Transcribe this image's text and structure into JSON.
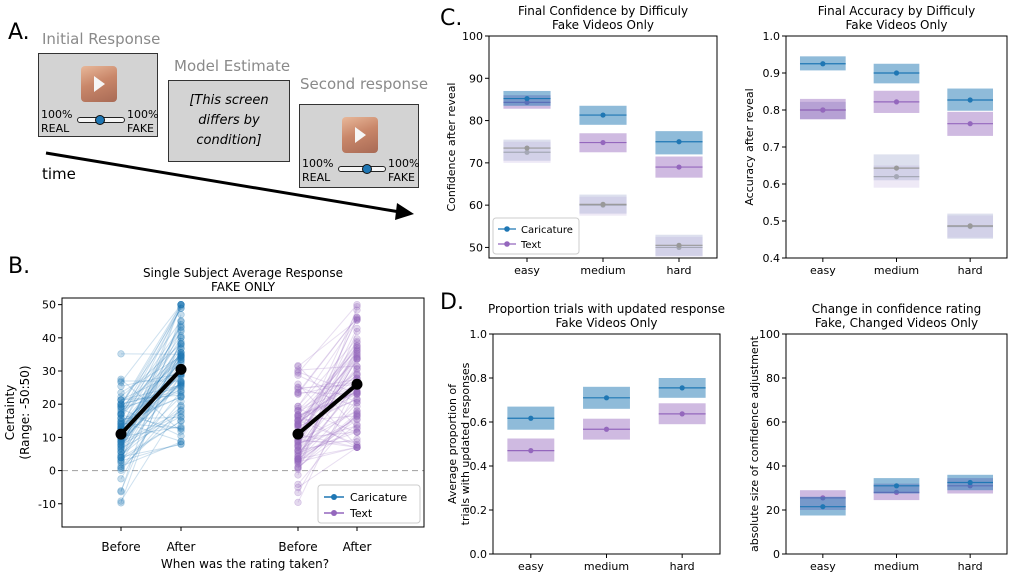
{
  "panels": {
    "a": "A.",
    "b": "B.",
    "c": "C.",
    "d": "D."
  },
  "schematic": {
    "initial_response": "Initial Response",
    "model_estimate": "Model Estimate",
    "second_response": "Second response",
    "model_text_line1": "[This screen",
    "model_text_line2": "differs by",
    "model_text_line3": "condition]",
    "pct_left": "100%",
    "pct_right": "100%",
    "real": "REAL",
    "fake": "FAKE",
    "time": "time",
    "initial_slider_value": 0.5,
    "second_slider_value": 0.55
  },
  "colors": {
    "caricature": "#1f77b4",
    "text": "#9467bd",
    "baseline": "#a9a9a9",
    "baseline2": "#b0b0d0"
  },
  "chart_data": [
    {
      "id": "B",
      "type": "line",
      "title": "Single Subject Average Response",
      "subtitle": "FAKE ONLY",
      "xlabel": "When was the rating taken?",
      "ylabel_line1": "Certainty",
      "ylabel_line2": "(Range: -50:50)",
      "ylim": [
        -17,
        52
      ],
      "yticks": [
        "-10",
        "0",
        "10",
        "20",
        "30",
        "40",
        "50"
      ],
      "xticks": [
        "Before",
        "After",
        "Before",
        "After"
      ],
      "legend": [
        "Caricature",
        "Text"
      ],
      "series": [
        {
          "name": "Caricature",
          "before_mean": 11,
          "after_mean": 30.5
        },
        {
          "name": "Text",
          "before_mean": 11,
          "after_mean": 26
        }
      ]
    },
    {
      "id": "C1",
      "type": "line",
      "title": "Final Confidence by Difficuly",
      "subtitle": "Fake Videos Only",
      "ylabel": "Confidence after reveal",
      "categories": [
        "easy",
        "medium",
        "hard"
      ],
      "ylim": [
        47.5,
        100
      ],
      "yticks": [
        "50",
        "60",
        "70",
        "80",
        "90",
        "100"
      ],
      "legend": [
        "Caricature",
        "Text"
      ],
      "series": [
        {
          "name": "Caricature",
          "values": [
            85.2,
            81.3,
            75
          ],
          "ci": [
            [
              83.5,
              87
            ],
            [
              79,
              83.5
            ],
            [
              72,
              77.5
            ]
          ]
        },
        {
          "name": "Text",
          "values": [
            84.3,
            74.8,
            69
          ],
          "ci": [
            [
              82.8,
              86
            ],
            [
              72.5,
              77
            ],
            [
              66.5,
              71.5
            ]
          ]
        },
        {
          "values": [
            73.5,
            60.2,
            50.5
          ],
          "ci": [
            [
              70.5,
              75.5
            ],
            [
              58,
              62.5
            ],
            [
              48,
              53
            ]
          ]
        },
        {
          "values": [
            72.5,
            60,
            50
          ],
          "ci": [
            [
              70,
              75
            ],
            [
              57.5,
              62
            ],
            [
              47.8,
              52.5
            ]
          ]
        }
      ]
    },
    {
      "id": "C2",
      "type": "line",
      "title": "Final Accuracy by Difficuly",
      "subtitle": "Fake Videos Only",
      "ylabel": "Accuracy after reveal",
      "categories": [
        "easy",
        "medium",
        "hard"
      ],
      "ylim": [
        0.4,
        1.0
      ],
      "yticks": [
        "0.4",
        "0.5",
        "0.6",
        "0.7",
        "0.8",
        "0.9",
        "1.0"
      ],
      "series": [
        {
          "name": "Caricature",
          "values": [
            0.925,
            0.9,
            0.827
          ],
          "ci": [
            [
              0.907,
              0.945
            ],
            [
              0.872,
              0.925
            ],
            [
              0.798,
              0.858
            ]
          ]
        },
        {
          "name": "Text",
          "values": [
            0.8,
            0.822,
            0.763
          ],
          "ci": [
            [
              0.775,
              0.83
            ],
            [
              0.792,
              0.852
            ],
            [
              0.73,
              0.795
            ]
          ]
        },
        {
          "values": [
            0.8,
            0.643,
            0.487
          ],
          "ci": [
            [
              0.775,
              0.822
            ],
            [
              0.61,
              0.68
            ],
            [
              0.452,
              0.52
            ]
          ]
        },
        {
          "values": [
            0.8,
            0.62,
            0.485
          ],
          "ci": [
            [
              0.775,
              0.822
            ],
            [
              0.59,
              0.65
            ],
            [
              0.455,
              0.515
            ]
          ]
        }
      ]
    },
    {
      "id": "D1",
      "type": "line",
      "title": "Proportion trials with updated response",
      "subtitle": "Fake Videos Only",
      "ylabel_line1": "Average proportion of",
      "ylabel_line2": "trials with updated responses",
      "categories": [
        "easy",
        "medium",
        "hard"
      ],
      "ylim": [
        0.0,
        1.0
      ],
      "yticks": [
        "0.0",
        "0.2",
        "0.4",
        "0.6",
        "0.8",
        "1.0"
      ],
      "series": [
        {
          "name": "Caricature",
          "values": [
            0.617,
            0.71,
            0.755
          ],
          "ci": [
            [
              0.565,
              0.67
            ],
            [
              0.66,
              0.76
            ],
            [
              0.71,
              0.8
            ]
          ]
        },
        {
          "name": "Text",
          "values": [
            0.47,
            0.567,
            0.637
          ],
          "ci": [
            [
              0.42,
              0.525
            ],
            [
              0.52,
              0.615
            ],
            [
              0.59,
              0.685
            ]
          ]
        }
      ]
    },
    {
      "id": "D2",
      "type": "line",
      "title": "Change in confidence rating",
      "subtitle": "Fake, Changed Videos Only",
      "ylabel": "absolute size of confidence adjustment",
      "categories": [
        "easy",
        "medium",
        "hard"
      ],
      "ylim": [
        0,
        100
      ],
      "yticks": [
        "0",
        "20",
        "40",
        "60",
        "80",
        "100"
      ],
      "series": [
        {
          "name": "Caricature",
          "values": [
            21.5,
            31,
            32.5
          ],
          "ci": [
            [
              17.5,
              26
            ],
            [
              27.5,
              34.5
            ],
            [
              29,
              36
            ]
          ]
        },
        {
          "name": "Text",
          "values": [
            25.5,
            28,
            31
          ],
          "ci": [
            [
              20,
              29
            ],
            [
              24.5,
              32
            ],
            [
              27.5,
              34.5
            ]
          ]
        }
      ]
    }
  ]
}
